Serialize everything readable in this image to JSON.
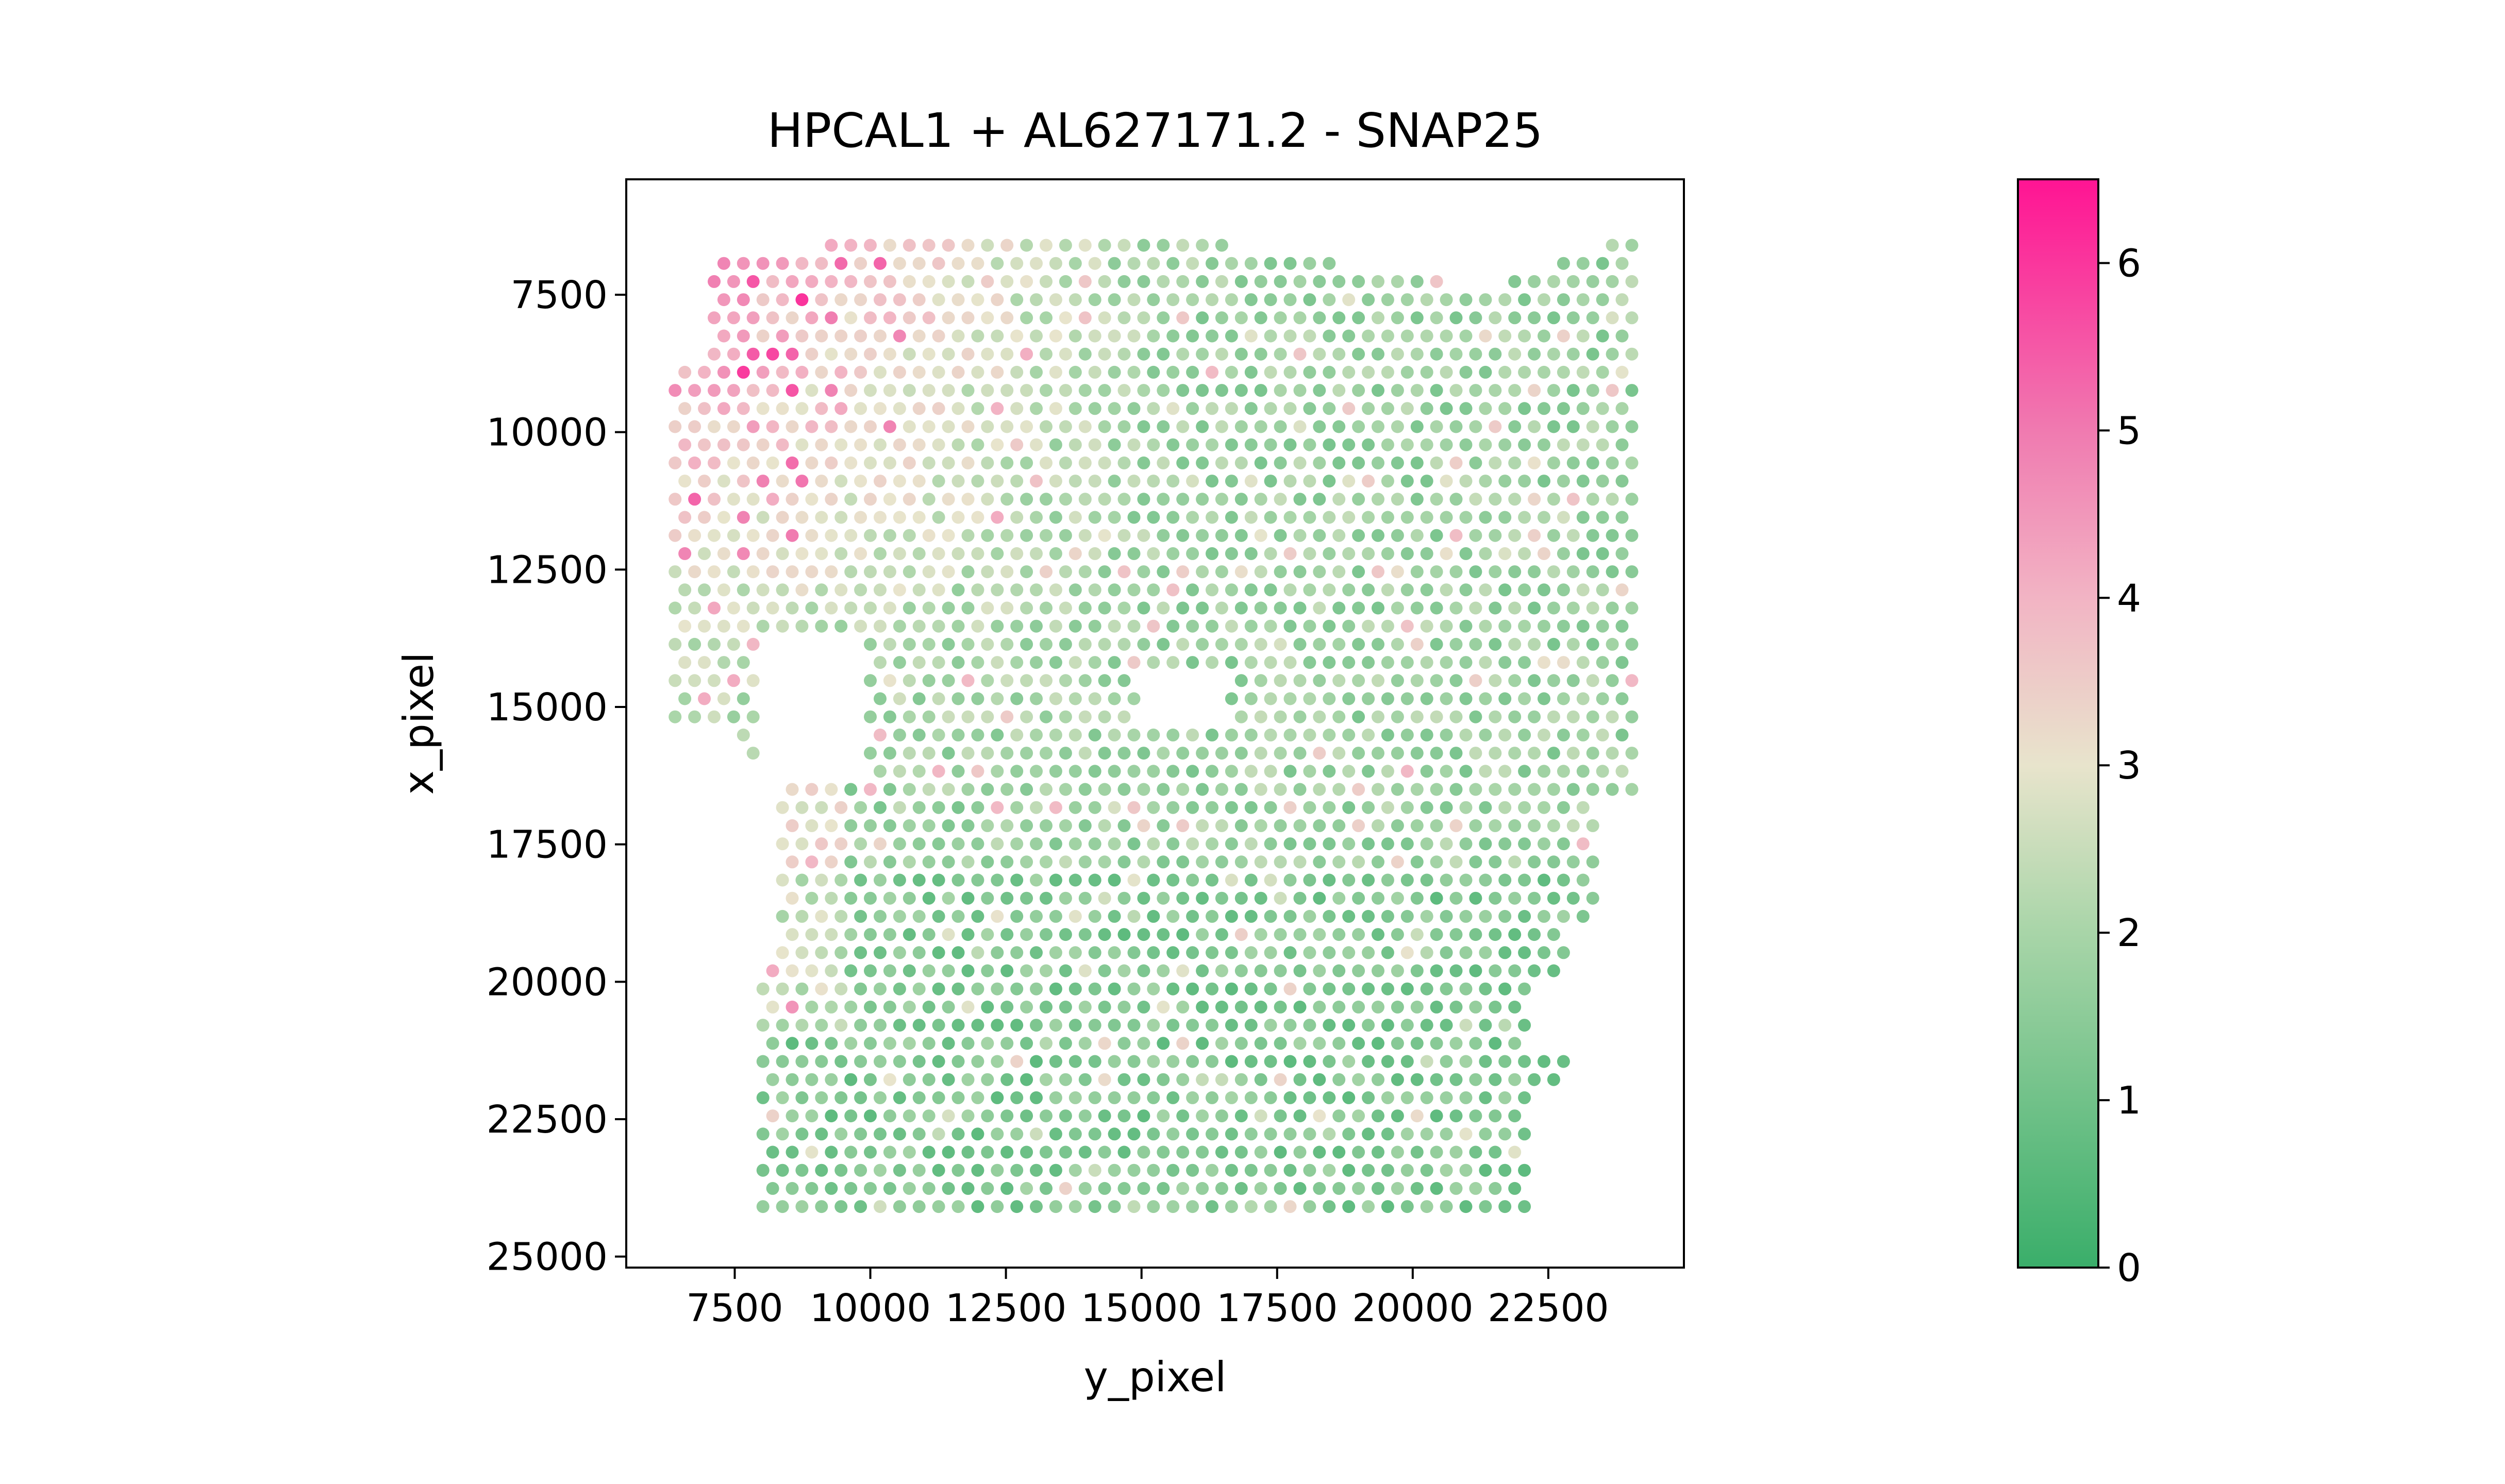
{
  "chart_data": {
    "type": "scatter",
    "title": "HPCAL1 + AL627171.2 - SNAP25",
    "xlabel": "y_pixel",
    "ylabel": "x_pixel",
    "xlim": [
      5500,
      25000
    ],
    "ylim": [
      25200,
      5400
    ],
    "y_inverted": true,
    "xticks": [
      7500,
      10000,
      12500,
      15000,
      17500,
      20000,
      22500
    ],
    "xtick_labels": [
      "7500",
      "10000",
      "12500",
      "15000",
      "17500",
      "20000",
      "22500"
    ],
    "yticks": [
      7500,
      10000,
      12500,
      15000,
      17500,
      20000,
      22500,
      25000
    ],
    "ytick_labels": [
      "7500",
      "10000",
      "12500",
      "15000",
      "17500",
      "20000",
      "22500",
      "25000"
    ],
    "grid": false,
    "spot_grid": {
      "x_start": 6400,
      "x_end": 24100,
      "y_start": 6600,
      "y_end": 24300,
      "x_step": 360,
      "y_step": 330
    },
    "colorbar": {
      "min": 0,
      "max": 6.5,
      "ticks": [
        0,
        1,
        2,
        3,
        4,
        5,
        6
      ],
      "tick_labels": [
        "0",
        "1",
        "2",
        "3",
        "4",
        "5",
        "6"
      ],
      "colormap_stops": [
        {
          "value": 0.0,
          "color": "#3aae6a"
        },
        {
          "value": 2.0,
          "color": "#a8d5a8"
        },
        {
          "value": 3.0,
          "color": "#e8e4cc"
        },
        {
          "value": 4.0,
          "color": "#f2b4c4"
        },
        {
          "value": 5.0,
          "color": "#f07ab0"
        },
        {
          "value": 6.5,
          "color": "#ff1493"
        }
      ]
    }
  }
}
